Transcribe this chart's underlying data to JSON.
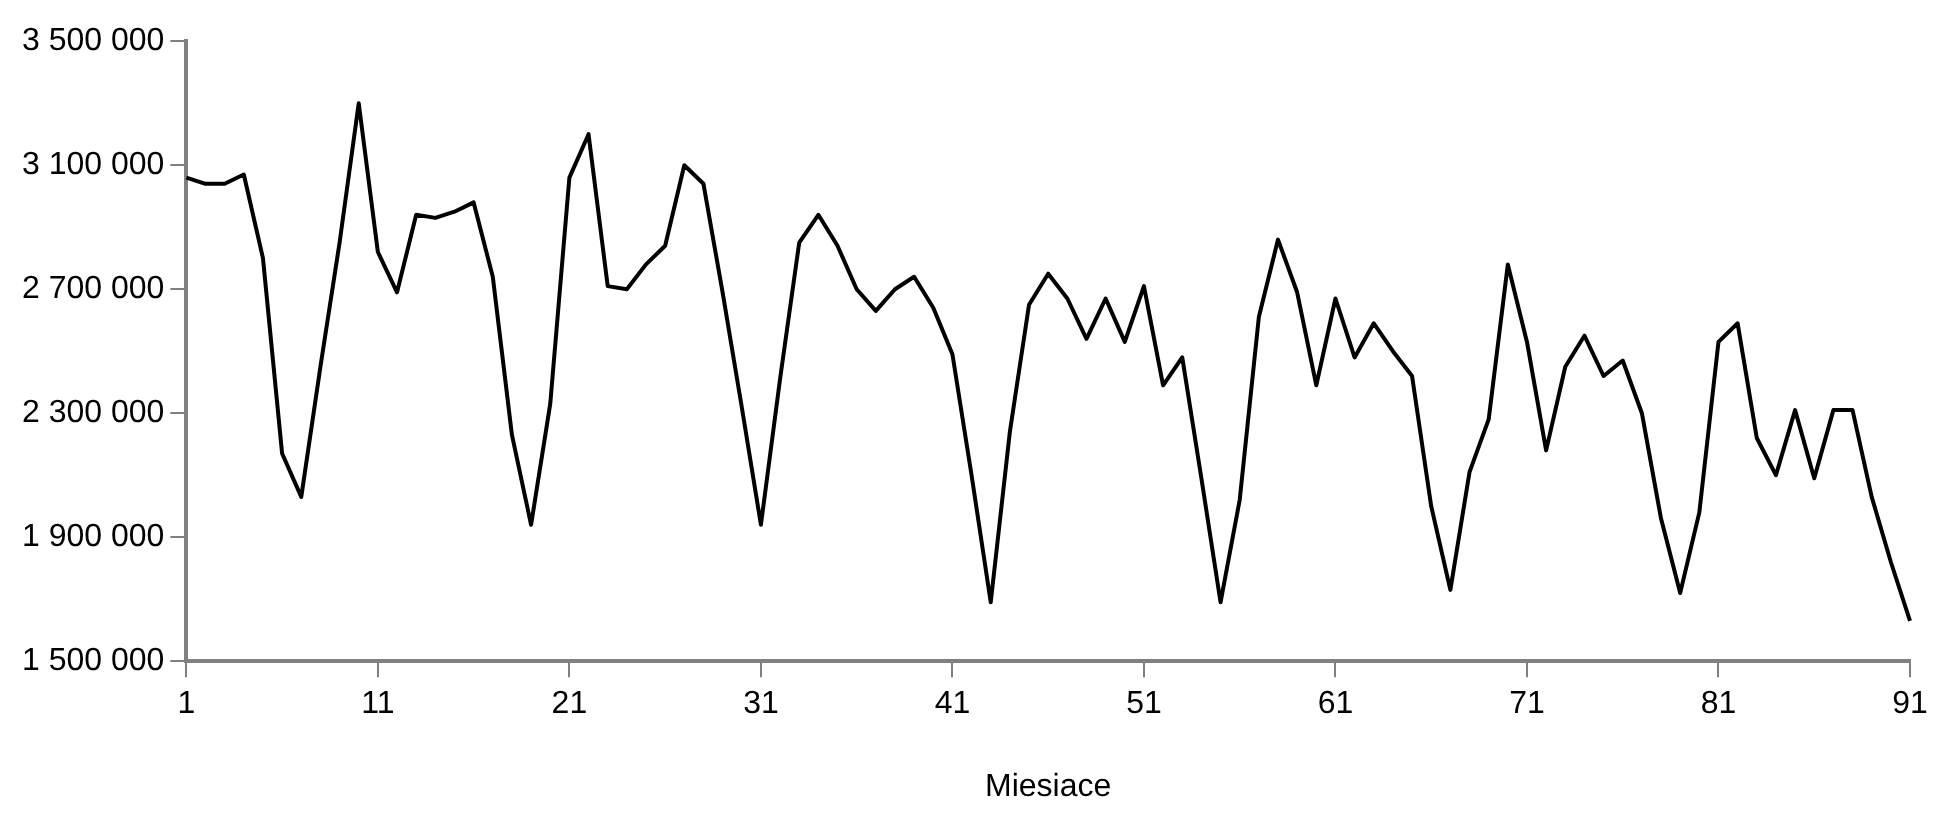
{
  "chart_data": {
    "type": "line",
    "xlabel": "Miesiace",
    "categories": [
      "1",
      null,
      null,
      null,
      null,
      null,
      null,
      null,
      null,
      null,
      "11",
      null,
      null,
      null,
      null,
      null,
      null,
      null,
      null,
      null,
      "21",
      null,
      null,
      null,
      null,
      null,
      null,
      null,
      null,
      null,
      "31",
      null,
      null,
      null,
      null,
      null,
      null,
      null,
      null,
      null,
      "41",
      null,
      null,
      null,
      null,
      null,
      null,
      null,
      null,
      null,
      "51",
      null,
      null,
      null,
      null,
      null,
      null,
      null,
      null,
      null,
      "61",
      null,
      null,
      null,
      null,
      null,
      null,
      null,
      null,
      null,
      "71",
      null,
      null,
      null,
      null,
      null,
      null,
      null,
      null,
      null,
      "81",
      null,
      null,
      null,
      null,
      null,
      null,
      null,
      null,
      null,
      "91"
    ],
    "series": [
      {
        "color": "#000000",
        "values": [
          3060000,
          3040000,
          3040000,
          3070000,
          2800000,
          2170000,
          2030000,
          2450000,
          2850000,
          3300000,
          2820000,
          2690000,
          2940000,
          2930000,
          2950000,
          2980000,
          2740000,
          2230000,
          1940000,
          2330000,
          3060000,
          3200000,
          2710000,
          2700000,
          2780000,
          2840000,
          3100000,
          3040000,
          2690000,
          2320000,
          1940000,
          2410000,
          2850000,
          2940000,
          2840000,
          2700000,
          2630000,
          2700000,
          2740000,
          2640000,
          2490000,
          2100000,
          1690000,
          2240000,
          2650000,
          2750000,
          2670000,
          2540000,
          2670000,
          2530000,
          2710000,
          2390000,
          2480000,
          2090000,
          1690000,
          2020000,
          2610000,
          2860000,
          2690000,
          2390000,
          2670000,
          2480000,
          2590000,
          2500000,
          2420000,
          2000000,
          1730000,
          2110000,
          2280000,
          2780000,
          2530000,
          2180000,
          2450000,
          2550000,
          2420000,
          2470000,
          2300000,
          1960000,
          1720000,
          1980000,
          2530000,
          2590000,
          2220000,
          2100000,
          2310000,
          2090000,
          2310000,
          2310000,
          2030000,
          1820000,
          1630000
        ]
      }
    ],
    "ylim": [
      1500000,
      3500000
    ],
    "yticks": [
      {
        "value": 1500000,
        "label": "1 500 000"
      },
      {
        "value": 1900000,
        "label": "1 900 000"
      },
      {
        "value": 2300000,
        "label": "2 300 000"
      },
      {
        "value": 2700000,
        "label": "2 700 000"
      },
      {
        "value": 3100000,
        "label": "3 100 000"
      },
      {
        "value": 3500000,
        "label": "3 500 000"
      }
    ],
    "grid": false,
    "legend": false,
    "marker": "none",
    "line_style": "solid"
  }
}
